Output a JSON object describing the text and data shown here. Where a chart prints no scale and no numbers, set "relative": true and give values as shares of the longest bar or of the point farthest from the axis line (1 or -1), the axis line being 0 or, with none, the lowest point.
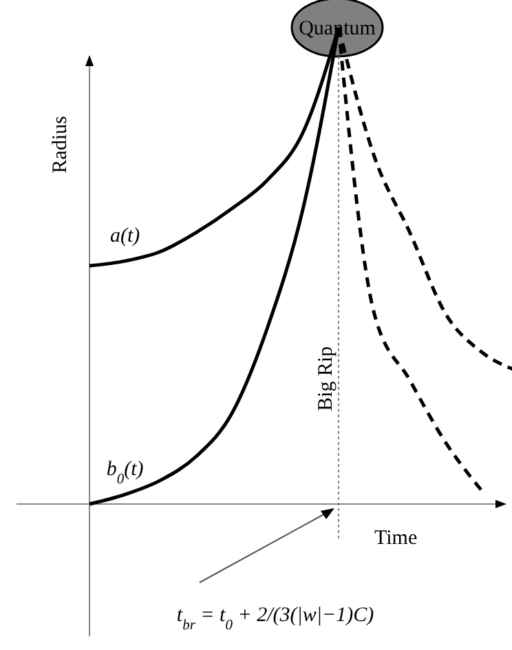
{
  "chart_data": {
    "type": "line",
    "relative": true,
    "categories": [
      null,
      null,
      null,
      null,
      null,
      null,
      null,
      null,
      null,
      null,
      null,
      null,
      null
    ],
    "xlabel": "Time",
    "ylabel": "Radius",
    "annotations": [
      "Quantum",
      "t$_{br}$ = t$_{0}$ + 2/(3(|w|−1)C)",
      "Big Rip"
    ],
    "series": [
      {
        "name": "a(t)",
        "color": "#000000",
        "line_style": "solid",
        "values": [
          0.5,
          0.51,
          0.53,
          0.57,
          0.62,
          0.68,
          0.78,
          1,
          null,
          null,
          null,
          null,
          null
        ]
      },
      {
        "name": "b$_{0}$(t)",
        "color": "#000000",
        "line_style": "solid",
        "values": [
          0,
          0.02,
          0.05,
          0.1,
          0.19,
          0.37,
          0.62,
          1,
          null,
          null,
          null,
          null,
          null
        ]
      },
      {
        "color": "#000000",
        "line_style": "dashed",
        "values": [
          null,
          null,
          null,
          null,
          null,
          null,
          null,
          1,
          0.73,
          0.57,
          0.4,
          0.32,
          0.28
        ]
      },
      {
        "color": "#000000",
        "line_style": "dashed",
        "values": [
          null,
          null,
          null,
          null,
          null,
          null,
          null,
          1,
          0.4,
          0.26,
          0.13,
          0.03,
          null
        ]
      }
    ]
  }
}
